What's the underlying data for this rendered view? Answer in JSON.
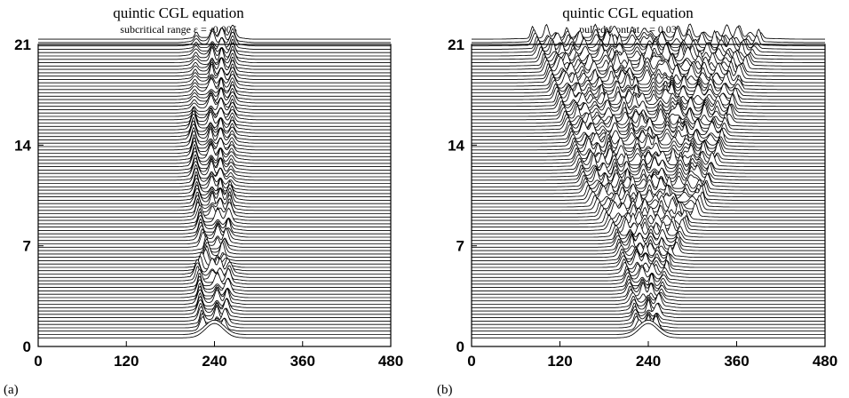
{
  "chart_data": [
    {
      "type": "line",
      "subtype": "waterfall",
      "panel_label": "(a)",
      "title": "quintic CGL equation",
      "subtitle": "subcritical range ε = -0.005",
      "x_ticks": [
        "0",
        "120",
        "240",
        "360",
        "480"
      ],
      "y_ticks": [
        "0",
        "7",
        "14",
        "21"
      ],
      "xlim": [
        0,
        480
      ],
      "ylim": [
        0,
        21
      ],
      "grid": false,
      "n_traces": 90,
      "baseline_step": 0.2333,
      "peak_height": 1.0,
      "description_of_series": "amplitude profiles stacked in time; localized pulse centered near x=240 splitting into 3-4 oscillating spikes confined between x≈205 and x≈275",
      "active_region": [
        {
          "t": 0.0,
          "x_left": 222,
          "x_right": 258
        },
        {
          "t": 1.5,
          "x_left": 215,
          "x_right": 265
        },
        {
          "t": 4.5,
          "x_left": 212,
          "x_right": 270
        },
        {
          "t": 5.5,
          "x_left": 226,
          "x_right": 254
        },
        {
          "t": 7.0,
          "x_left": 215,
          "x_right": 268
        },
        {
          "t": 14.0,
          "x_left": 205,
          "x_right": 275
        },
        {
          "t": 21.0,
          "x_left": 210,
          "x_right": 275
        }
      ]
    },
    {
      "type": "line",
      "subtype": "waterfall",
      "panel_label": "(b)",
      "title": "quintic CGL equation",
      "subtitle": "pulled front at ε = 0.03",
      "x_ticks": [
        "0",
        "120",
        "240",
        "360",
        "480"
      ],
      "y_ticks": [
        "0",
        "7",
        "14",
        "21"
      ],
      "xlim": [
        0,
        480
      ],
      "ylim": [
        0,
        21
      ],
      "grid": false,
      "n_traces": 90,
      "baseline_step": 0.2333,
      "peak_height": 1.0,
      "description_of_series": "amplitude profiles stacked in time; localized pulse near x=240 spreading outward as a front, active region widening from ~60 to ~350 units",
      "active_region": [
        {
          "t": 0.0,
          "x_left": 222,
          "x_right": 258
        },
        {
          "t": 4.0,
          "x_left": 205,
          "x_right": 275
        },
        {
          "t": 7.0,
          "x_left": 190,
          "x_right": 290
        },
        {
          "t": 10.0,
          "x_left": 150,
          "x_right": 330
        },
        {
          "t": 14.0,
          "x_left": 128,
          "x_right": 350
        },
        {
          "t": 18.0,
          "x_left": 100,
          "x_right": 370
        },
        {
          "t": 21.0,
          "x_left": 75,
          "x_right": 405
        }
      ]
    }
  ]
}
